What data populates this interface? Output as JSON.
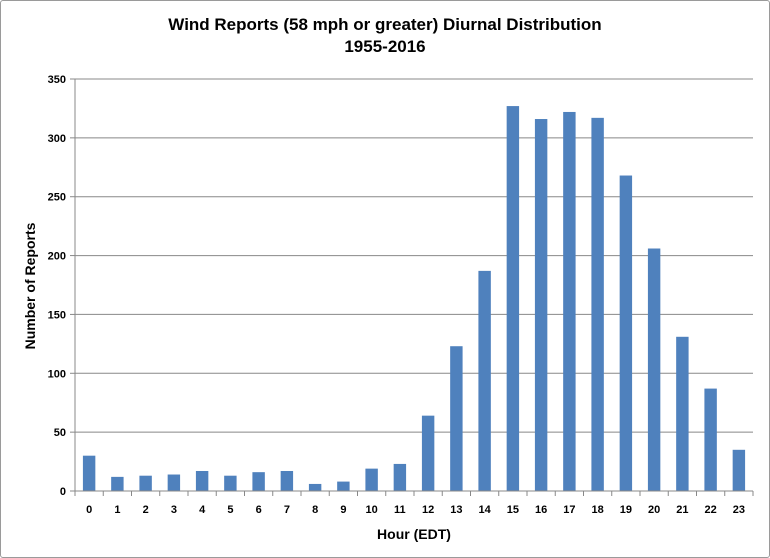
{
  "chart_data": {
    "type": "bar",
    "title": "Wind Reports (58 mph or greater) Diurnal Distribution",
    "subtitle": "1955-2016",
    "xlabel": "Hour (EDT)",
    "ylabel": "Number of Reports",
    "categories": [
      "0",
      "1",
      "2",
      "3",
      "4",
      "5",
      "6",
      "7",
      "8",
      "9",
      "10",
      "11",
      "12",
      "13",
      "14",
      "15",
      "16",
      "17",
      "18",
      "19",
      "20",
      "21",
      "22",
      "23"
    ],
    "values": [
      30,
      12,
      13,
      14,
      17,
      13,
      16,
      17,
      6,
      8,
      19,
      23,
      64,
      123,
      187,
      327,
      316,
      322,
      317,
      268,
      206,
      131,
      87,
      35
    ],
    "ylim": [
      0,
      350
    ],
    "yticks": [
      0,
      50,
      100,
      150,
      200,
      250,
      300,
      350
    ],
    "grid": true,
    "bar_color": "#4f81bd",
    "grid_color": "#888888"
  }
}
